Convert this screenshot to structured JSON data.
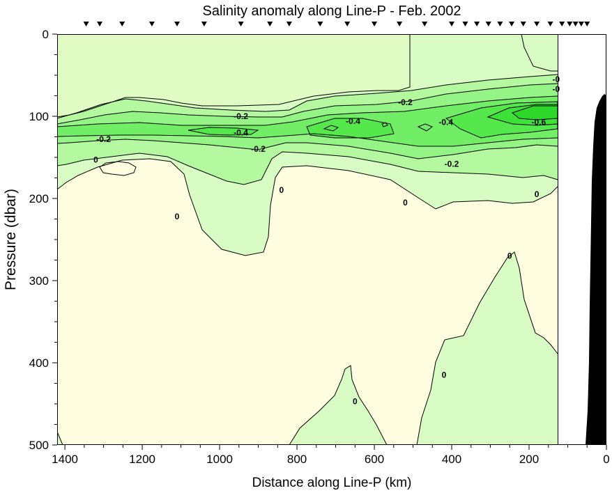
{
  "chart_data": {
    "type": "contour",
    "title": "Salinity anomaly along Line-P - Feb. 2002",
    "xlabel": "Distance along Line-P (km)",
    "ylabel": "Pressure (dbar)",
    "xlim": [
      1420,
      0
    ],
    "ylim": [
      0,
      500
    ],
    "x_reversed": true,
    "y_reversed": true,
    "x_ticks": [
      1400,
      1200,
      1000,
      800,
      600,
      400,
      200,
      0
    ],
    "y_ticks": [
      0,
      100,
      200,
      300,
      400,
      500
    ],
    "x_tick_labels": [
      "1400",
      "1200",
      "1000",
      "800",
      "600",
      "400",
      "200",
      "0"
    ],
    "y_tick_labels": [
      "0",
      "100",
      "200",
      "300",
      "400",
      "500"
    ],
    "contour_levels": [
      0,
      -0.2,
      -0.4,
      -0.6
    ],
    "station_positions_km": [
      1345,
      1310,
      1252,
      1175,
      1110,
      1040,
      945,
      870,
      820,
      740,
      670,
      600,
      535,
      470,
      400,
      365,
      335,
      305,
      275,
      245,
      215,
      180,
      145,
      115,
      95,
      80,
      65,
      50
    ],
    "data_limit_km": 130,
    "colors": {
      "band_0_positive": "#fffde0",
      "band_1_0_to_-0.1": "#d8fcc4",
      "band_2_-0.1_to_-0.2": "#b4f8a0",
      "band_3_-0.2_to_-0.3": "#94f486",
      "band_4_-0.3_to_-0.4": "#72ee66",
      "band_5_-0.4_to_-0.5": "#54e84c",
      "band_6_-0.5_to_-0.6": "#3ee03a",
      "bathymetry": "#000000"
    },
    "contour_labels": [
      {
        "text": "0",
        "x_km": 1320,
        "p_dbar": 153
      },
      {
        "text": "-0.2",
        "x_km": 1300,
        "p_dbar": 128
      },
      {
        "text": "0",
        "x_km": 1110,
        "p_dbar": 222
      },
      {
        "text": "-0.4",
        "x_km": 945,
        "p_dbar": 120
      },
      {
        "text": "-0.2",
        "x_km": 945,
        "p_dbar": 100
      },
      {
        "text": "-0.2",
        "x_km": 900,
        "p_dbar": 140
      },
      {
        "text": "0",
        "x_km": 840,
        "p_dbar": 190
      },
      {
        "text": "-0.4",
        "x_km": 655,
        "p_dbar": 106
      },
      {
        "text": "-0.2",
        "x_km": 520,
        "p_dbar": 83
      },
      {
        "text": "0",
        "x_km": 520,
        "p_dbar": 205
      },
      {
        "text": "-0.4",
        "x_km": 415,
        "p_dbar": 107
      },
      {
        "text": "-0.2",
        "x_km": 400,
        "p_dbar": 158
      },
      {
        "text": "0",
        "x_km": 250,
        "p_dbar": 270
      },
      {
        "text": "0",
        "x_km": 420,
        "p_dbar": 415
      },
      {
        "text": "0",
        "x_km": 650,
        "p_dbar": 447
      },
      {
        "text": "0",
        "x_km": 180,
        "p_dbar": 195
      },
      {
        "text": "-0.6",
        "x_km": 175,
        "p_dbar": 107
      },
      {
        "text": "-0",
        "x_km": 130,
        "p_dbar": 55
      },
      {
        "text": "-0",
        "x_km": 130,
        "p_dbar": 67
      }
    ]
  }
}
